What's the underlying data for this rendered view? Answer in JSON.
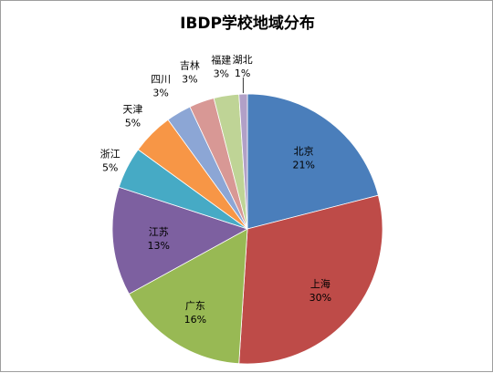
{
  "chart_data": {
    "type": "pie",
    "title": "IBDP学校地域分布",
    "categories": [
      "北京",
      "上海",
      "广东",
      "江苏",
      "浙江",
      "天津",
      "四川",
      "吉林",
      "福建",
      "湖北"
    ],
    "values": [
      21,
      30,
      16,
      13,
      5,
      5,
      3,
      3,
      3,
      1
    ],
    "value_labels": [
      "21%",
      "30%",
      "16%",
      "13%",
      "5%",
      "5%",
      "3%",
      "3%",
      "3%",
      "1%"
    ],
    "colors": [
      "#4a7ebb",
      "#be4b48",
      "#98b954",
      "#7d60a0",
      "#46aac5",
      "#f79646",
      "#8ca6d5",
      "#d89895",
      "#bfd496",
      "#b1a0c7"
    ],
    "start_angle_deg": 0,
    "direction": "clockwise",
    "legend": "none",
    "data_labels": "category-and-percent"
  }
}
